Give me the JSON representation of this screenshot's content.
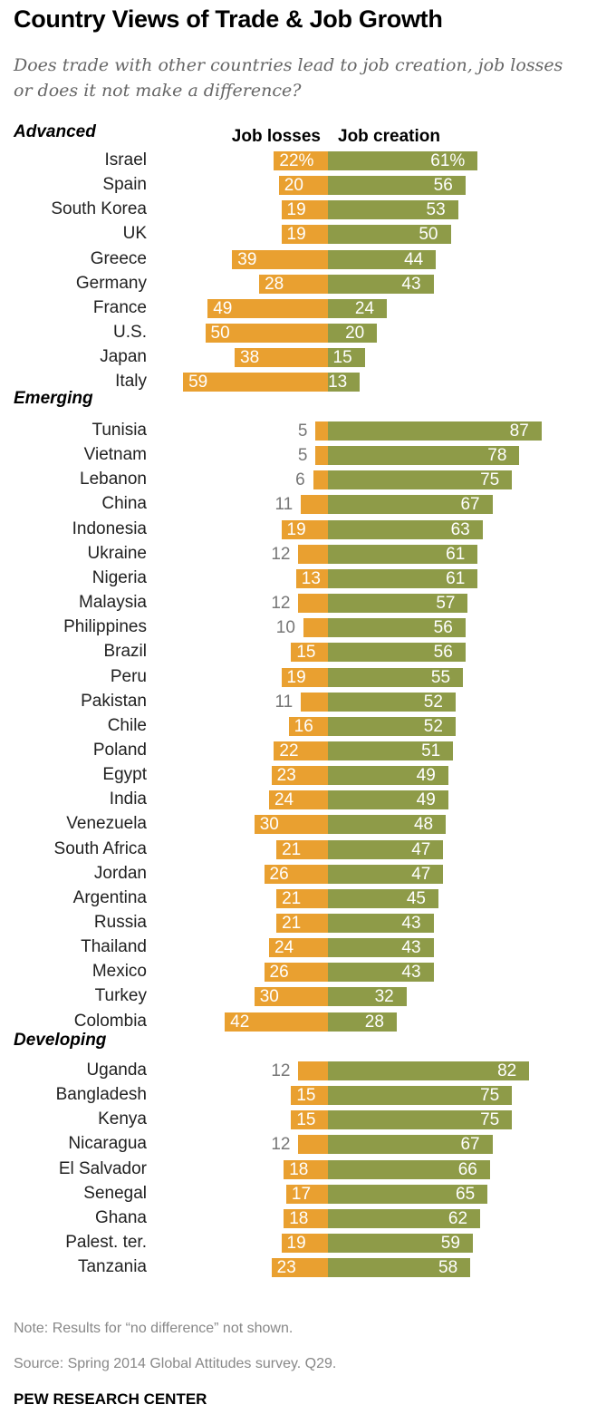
{
  "chart_data": {
    "type": "bar",
    "title": "Country Views of Trade & Job Growth",
    "subtitle": "Does trade with other countries lead to job creation, job losses or does it not make a difference?",
    "legend": {
      "losses": "Job losses",
      "creation": "Job creation"
    },
    "colors": {
      "losses": "#E9A030",
      "creation": "#8E9B48"
    },
    "groups": [
      {
        "name": "Advanced",
        "rows": [
          {
            "country": "Israel",
            "losses": 22,
            "creation": 61,
            "losses_label": "22%",
            "creation_label": "61%"
          },
          {
            "country": "Spain",
            "losses": 20,
            "creation": 56
          },
          {
            "country": "South Korea",
            "losses": 19,
            "creation": 53
          },
          {
            "country": "UK",
            "losses": 19,
            "creation": 50
          },
          {
            "country": "Greece",
            "losses": 39,
            "creation": 44
          },
          {
            "country": "Germany",
            "losses": 28,
            "creation": 43
          },
          {
            "country": "France",
            "losses": 49,
            "creation": 24
          },
          {
            "country": "U.S.",
            "losses": 50,
            "creation": 20
          },
          {
            "country": "Japan",
            "losses": 38,
            "creation": 15
          },
          {
            "country": "Italy",
            "losses": 59,
            "creation": 13
          }
        ]
      },
      {
        "name": "Emerging",
        "rows": [
          {
            "country": "Tunisia",
            "losses": 5,
            "creation": 87
          },
          {
            "country": "Vietnam",
            "losses": 5,
            "creation": 78
          },
          {
            "country": "Lebanon",
            "losses": 6,
            "creation": 75
          },
          {
            "country": "China",
            "losses": 11,
            "creation": 67
          },
          {
            "country": "Indonesia",
            "losses": 19,
            "creation": 63
          },
          {
            "country": "Ukraine",
            "losses": 12,
            "creation": 61
          },
          {
            "country": "Nigeria",
            "losses": 13,
            "creation": 61
          },
          {
            "country": "Malaysia",
            "losses": 12,
            "creation": 57
          },
          {
            "country": "Philippines",
            "losses": 10,
            "creation": 56
          },
          {
            "country": "Brazil",
            "losses": 15,
            "creation": 56
          },
          {
            "country": "Peru",
            "losses": 19,
            "creation": 55
          },
          {
            "country": "Pakistan",
            "losses": 11,
            "creation": 52
          },
          {
            "country": "Chile",
            "losses": 16,
            "creation": 52
          },
          {
            "country": "Poland",
            "losses": 22,
            "creation": 51
          },
          {
            "country": "Egypt",
            "losses": 23,
            "creation": 49
          },
          {
            "country": "India",
            "losses": 24,
            "creation": 49
          },
          {
            "country": "Venezuela",
            "losses": 30,
            "creation": 48
          },
          {
            "country": "South Africa",
            "losses": 21,
            "creation": 47
          },
          {
            "country": "Jordan",
            "losses": 26,
            "creation": 47
          },
          {
            "country": "Argentina",
            "losses": 21,
            "creation": 45
          },
          {
            "country": "Russia",
            "losses": 21,
            "creation": 43
          },
          {
            "country": "Thailand",
            "losses": 24,
            "creation": 43
          },
          {
            "country": "Mexico",
            "losses": 26,
            "creation": 43
          },
          {
            "country": "Turkey",
            "losses": 30,
            "creation": 32
          },
          {
            "country": "Colombia",
            "losses": 42,
            "creation": 28
          }
        ]
      },
      {
        "name": "Developing",
        "rows": [
          {
            "country": "Uganda",
            "losses": 12,
            "creation": 82
          },
          {
            "country": "Bangladesh",
            "losses": 15,
            "creation": 75
          },
          {
            "country": "Kenya",
            "losses": 15,
            "creation": 75
          },
          {
            "country": "Nicaragua",
            "losses": 12,
            "creation": 67
          },
          {
            "country": "El Salvador",
            "losses": 18,
            "creation": 66
          },
          {
            "country": "Senegal",
            "losses": 17,
            "creation": 65
          },
          {
            "country": "Ghana",
            "losses": 18,
            "creation": 62
          },
          {
            "country": "Palest. ter.",
            "losses": 19,
            "creation": 59
          },
          {
            "country": "Tanzania",
            "losses": 23,
            "creation": 58
          }
        ]
      }
    ],
    "note": "Note: Results for “no difference” not shown.",
    "source": "Source: Spring 2014 Global Attitudes survey. Q29.",
    "brand": "PEW RESEARCH CENTER"
  }
}
